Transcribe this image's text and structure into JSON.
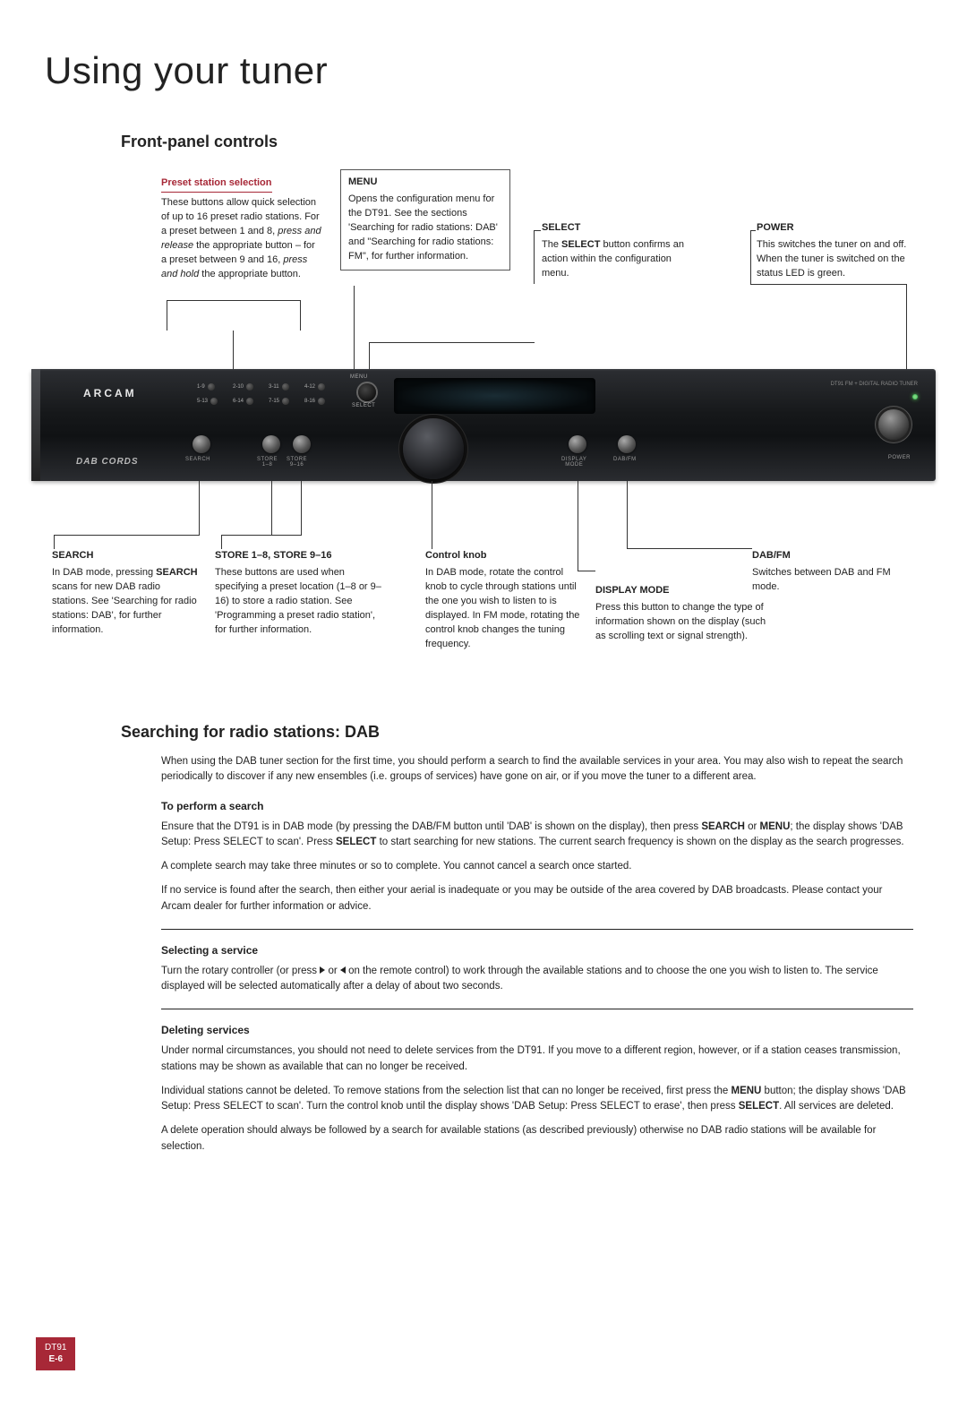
{
  "colors": {
    "accent": "#a72837",
    "text": "#222222",
    "panel_bg_top": "#2c2e32",
    "panel_bg_bottom": "#101214",
    "led_green": "#7fd87f"
  },
  "typography": {
    "title_size_pt": 42,
    "section_size_pt": 18,
    "body_size_pt": 11.5,
    "callout_size_pt": 11
  },
  "page": {
    "title": "Using your tuner",
    "tab_model": "DT91",
    "tab_page": "E-6"
  },
  "section1": {
    "title": "Front-panel controls"
  },
  "callouts": {
    "preset": {
      "title": "Preset station selection",
      "body_html": "These buttons allow quick selection of up to 16 preset radio stations. For a preset between 1 and 8, <span class='ital'>press and release</span> the appropriate button – for a preset between 9 and 16, <span class='ital'>press and hold</span> the appropriate button."
    },
    "menu": {
      "title": "MENU",
      "body": "Opens the configuration menu for the DT91. See the sections 'Searching for radio stations: DAB' and \"Searching for radio stations: FM\", for further information."
    },
    "select": {
      "title": "SELECT",
      "body_html": "The <span class='bold'>SELECT</span> button confirms an action within the configuration menu."
    },
    "power": {
      "title": "POWER",
      "body": "This switches the tuner on and off. When the tuner is switched on the status LED is green."
    },
    "search": {
      "title": "SEARCH",
      "body_html": "In DAB mode, pressing <span class='bold'>SEARCH</span> scans for new DAB radio stations. See 'Searching for radio stations: DAB', for further information."
    },
    "store": {
      "title": "STORE 1–8, STORE 9–16",
      "body": "These buttons are used when specifying a preset location (1–8 or 9–16) to store a radio station. See 'Programming a preset radio station', for further information."
    },
    "knob": {
      "title": "Control knob",
      "body": "In DAB mode, rotate the control knob to cycle through stations until the one you wish to listen to is displayed. In FM mode, rotating the control knob changes the tuning frequency."
    },
    "dabfm": {
      "title": "DAB/FM",
      "body": "Switches between DAB and FM mode."
    },
    "display": {
      "title": "DISPLAY MODE",
      "body": "Press this button to change the type of information shown on the display (such as scrolling text or signal strength)."
    }
  },
  "tuner": {
    "brand": "ARCAM",
    "sub_brand": "DAB CORDS",
    "model_text": "DT91 FM + DIGITAL RADIO TUNER",
    "preset_labels": [
      "1-9",
      "2-10",
      "3-11",
      "4-12",
      "5-13",
      "6-14",
      "7-15",
      "8-16"
    ],
    "menu_label": "MENU",
    "select_label": "SELECT",
    "search_label": "SEARCH",
    "store18_label": "STORE\n1–8",
    "store916_label": "STORE\n9–16",
    "display_label": "DISPLAY\nMODE",
    "dabfm_label": "DAB/FM",
    "power_label": "POWER"
  },
  "section2": {
    "title": "Searching for radio stations: DAB",
    "intro": "When using the DAB tuner section for the first time, you should perform a search to find the available services in your area. You may also wish to repeat the search periodically to discover if any new ensembles (i.e. groups of services) have gone on air, or if you move the tuner to a different area.",
    "perform_title": "To perform a search",
    "perform_p1_html": "Ensure that the DT91 is in DAB mode (by pressing the DAB/FM button until 'DAB' is shown on the display), then press <span class='bold'>SEARCH</span> or <span class='bold'>MENU</span>; the display shows 'DAB Setup: Press SELECT to scan'. Press <span class='bold'>SELECT</span> to start searching for new stations. The current search frequency is shown on the display as the search progresses.",
    "perform_p2": "A complete search may take three minutes or so to complete. You cannot cancel a search once started.",
    "perform_p3": "If no service is found after the search, then either your aerial is inadequate or you may be outside of the area covered by DAB broadcasts. Please contact your Arcam dealer for further information or advice.",
    "select_title": "Selecting a service",
    "select_p_html": "Turn the rotary controller (or press <span class='arrow arrow-r'></span> or <span class='arrow arrow-l'></span> on the remote control) to work through the available stations and to choose the one you wish to listen to. The service displayed will be selected automatically after a delay of about two seconds.",
    "delete_title": "Deleting services",
    "delete_p1": "Under normal circumstances, you should not need to delete services from the DT91. If you move to a different region, however, or if a station ceases transmission, stations may be shown as available that can no longer be received.",
    "delete_p2_html": "Individual stations cannot be deleted. To remove stations from the selection list that can no longer be received, first press the <span class='bold'>MENU</span> button; the display shows 'DAB Setup: Press SELECT to scan'. Turn the control knob until the display shows 'DAB Setup: Press SELECT to erase', then press <span class='bold'>SELECT</span>. All services are deleted.",
    "delete_p3": "A delete operation should always be followed by a search for available stations (as described previously) otherwise no DAB radio stations will be available for selection."
  }
}
